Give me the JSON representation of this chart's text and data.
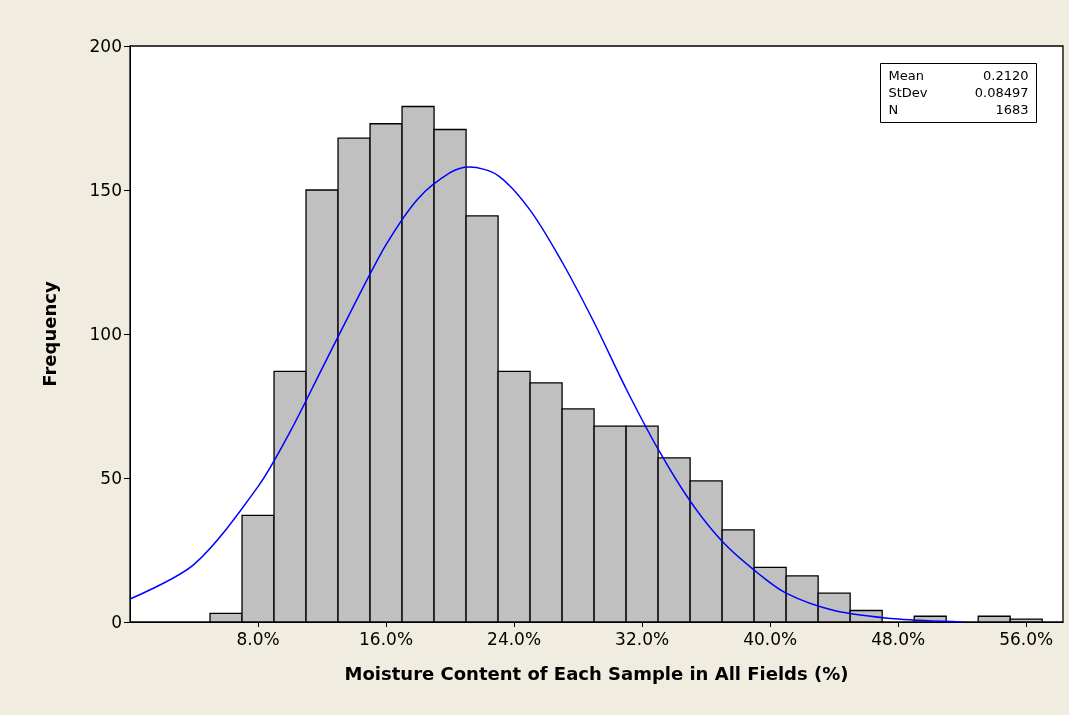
{
  "chart_data": {
    "type": "histogram",
    "xlabel": "Moisture Content of Each Sample in All Fields (%)",
    "ylabel": "Frequency",
    "bins": [
      5,
      7,
      9,
      11,
      13,
      15,
      17,
      19,
      21,
      23,
      25,
      27,
      29,
      31,
      33,
      35,
      37,
      39,
      41,
      43,
      45,
      47,
      49,
      51,
      53,
      55,
      57
    ],
    "values": [
      3,
      37,
      87,
      150,
      168,
      173,
      179,
      171,
      141,
      87,
      83,
      74,
      68,
      68,
      57,
      49,
      32,
      19,
      16,
      10,
      4,
      0,
      2,
      0,
      2,
      1
    ],
    "color": "#c0c0c0",
    "series": [
      {
        "type": "line",
        "color": "#0000ff",
        "x": [
          0,
          4,
          8,
          10,
          12,
          14,
          16,
          18,
          20,
          21.2,
          23,
          25,
          27,
          29,
          31,
          33,
          35,
          37,
          39,
          41,
          44,
          48,
          52
        ],
        "values": [
          8,
          20,
          47,
          66,
          88,
          110,
          131,
          147,
          156,
          158,
          155,
          143,
          125,
          104,
          81,
          60,
          42,
          28,
          18,
          10,
          4,
          1,
          0
        ]
      }
    ],
    "marker": "none",
    "xlim": [
      0,
      58.3
    ],
    "xticks": [
      {
        "value": 8,
        "label": "8.0%"
      },
      {
        "value": 16,
        "label": "16.0%"
      },
      {
        "value": 24,
        "label": "24.0%"
      },
      {
        "value": 32,
        "label": "32.0%"
      },
      {
        "value": 40,
        "label": "40.0%"
      },
      {
        "value": 48,
        "label": "48.0%"
      },
      {
        "value": 56,
        "label": "56.0%"
      }
    ],
    "ylim": [
      0,
      200
    ],
    "yticks": [
      0,
      50,
      100,
      150,
      200
    ],
    "grid": false,
    "annotations": [
      "Mean",
      "0.2120",
      "StDev",
      "0.08497",
      "N",
      "1683"
    ]
  }
}
